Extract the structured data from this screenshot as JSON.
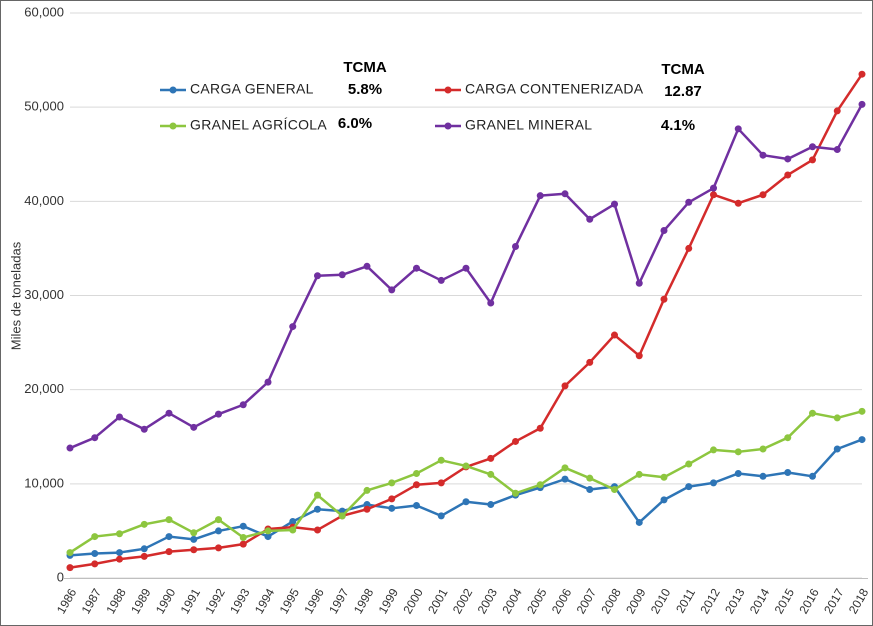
{
  "chart_data": {
    "type": "line",
    "y_label": "Miles de toneladas",
    "categories": [
      "1986",
      "1987",
      "1988",
      "1989",
      "1990",
      "1991",
      "1992",
      "1993",
      "1994",
      "1995",
      "1996",
      "1997",
      "1998",
      "1999",
      "2000",
      "2001",
      "2002",
      "2003",
      "2004",
      "2005",
      "2006",
      "2007",
      "2008",
      "2009",
      "2010",
      "2011",
      "2012",
      "2013",
      "2014",
      "2015",
      "2016",
      "2017",
      "2018"
    ],
    "series": [
      {
        "name": "CARGA GENERAL",
        "color": "#2e75b6",
        "values": [
          2400,
          2600,
          2700,
          3100,
          4400,
          4100,
          5000,
          5500,
          4400,
          6000,
          7300,
          7100,
          7800,
          7400,
          7700,
          6600,
          8100,
          7800,
          8800,
          9600,
          10500,
          9400,
          9700,
          5900,
          8300,
          9700,
          10100,
          11100,
          10800,
          11200,
          10800,
          13700,
          14700
        ]
      },
      {
        "name": "CARGA CONTENERIZADA",
        "color": "#d42b2b",
        "values": [
          1100,
          1500,
          2000,
          2300,
          2800,
          3000,
          3200,
          3600,
          5200,
          5400,
          5100,
          6600,
          7300,
          8400,
          9900,
          10100,
          11800,
          12700,
          14500,
          15900,
          20400,
          22900,
          25800,
          23600,
          29600,
          35000,
          40700,
          39800,
          40700,
          42800,
          44400,
          49600,
          53500
        ]
      },
      {
        "name": "GRANEL AGRÍCOLA",
        "color": "#8dc63f",
        "values": [
          2700,
          4400,
          4700,
          5700,
          6200,
          4800,
          6200,
          4300,
          5000,
          5100,
          8800,
          6600,
          9300,
          10100,
          11100,
          12500,
          11900,
          11000,
          9000,
          9900,
          11700,
          10600,
          9400,
          11000,
          10700,
          12100,
          13600,
          13400,
          13700,
          14900,
          17500,
          17000,
          17700
        ]
      },
      {
        "name": "GRANEL MINERAL",
        "color": "#7030a0",
        "values": [
          13800,
          14900,
          17100,
          15800,
          17500,
          16000,
          17400,
          18400,
          20800,
          26700,
          32100,
          32200,
          33100,
          30600,
          32900,
          31600,
          32900,
          29200,
          35200,
          40600,
          40800,
          38100,
          39700,
          31300,
          36900,
          39900,
          41400,
          47700,
          44900,
          44500,
          45800,
          45500,
          50300
        ]
      }
    ],
    "annotations": [
      "TCMA",
      "5.8%",
      "TCMA",
      "12.87",
      "6.0%",
      "4.1%"
    ],
    "ylim": [
      0,
      60000
    ],
    "yticks": [
      0,
      {
        "value": 10000,
        "label": "10,000"
      },
      {
        "value": 20000,
        "label": "20,000"
      },
      {
        "value": 30000,
        "label": "30,000"
      },
      {
        "value": 40000,
        "label": "40,000"
      },
      {
        "value": 50000,
        "label": "50,000"
      },
      {
        "value": 60000,
        "label": "60,000"
      }
    ],
    "grid": true
  }
}
